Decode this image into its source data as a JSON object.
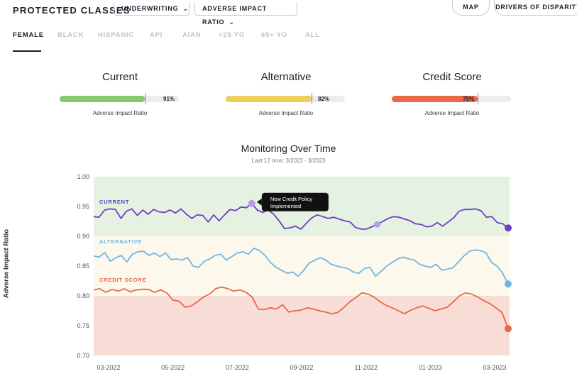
{
  "header": {
    "title": "PROTECTED CLASSES",
    "dropdowns": [
      {
        "label": "UNDERWRITING",
        "icon": "chevron-down-icon"
      },
      {
        "label": "ADVERSE IMPACT RATIO",
        "icon": "chevron-down-icon"
      }
    ],
    "buttons": [
      {
        "label": "MAP"
      },
      {
        "label": "DRIVERS OF DISPARITY"
      }
    ]
  },
  "tabs": [
    {
      "label": "FEMALE",
      "active": true
    },
    {
      "label": "BLACK"
    },
    {
      "label": "HISPANIC"
    },
    {
      "label": "API"
    },
    {
      "label": "AIAN"
    },
    {
      "label": "<25 YO"
    },
    {
      "label": "65+ YO"
    },
    {
      "label": "ALL"
    }
  ],
  "metrics": [
    {
      "title": "Current",
      "value": 91,
      "value_label": "91%",
      "subtitle": "Adverse Impact Ratio",
      "color": "#86c86b"
    },
    {
      "title": "Alternative",
      "value": 82,
      "value_label": "82%",
      "subtitle": "Adverse Impact Ratio",
      "color": "#ecd05a"
    },
    {
      "title": "Credit Score",
      "value": 75,
      "value_label": "75%",
      "subtitle": "Adverse Impact Ratio",
      "color": "#e8684a"
    }
  ],
  "chart": {
    "title": "Monitoring Over Time",
    "subtitle": "Last 12 mos: 3/2022 - 3/2023",
    "ylabel": "Adverse Impact Ratio",
    "annotation": "New Credit Policy Implemented"
  },
  "chart_data": {
    "type": "line",
    "x_labels": [
      "03-2022",
      "05-2022",
      "07-2022",
      "09-2022",
      "11-2022",
      "01-2023",
      "03-2023"
    ],
    "ylim": [
      0.7,
      1.0
    ],
    "y_ticks": [
      0.7,
      0.75,
      0.8,
      0.85,
      0.9,
      0.95,
      1.0
    ],
    "bands": [
      {
        "from": 0.9,
        "to": 1.0,
        "color": "#e5f2e2"
      },
      {
        "from": 0.8,
        "to": 0.9,
        "color": "#fdf8ec"
      },
      {
        "from": 0.7,
        "to": 0.8,
        "color": "#f8dcd6"
      }
    ],
    "annotation_point": {
      "x": "07-2022",
      "y": 0.955,
      "series": "CURRENT"
    },
    "series": [
      {
        "name": "CURRENT",
        "color": "#6a3fc6",
        "label_color": "#5b3fc0",
        "values": [
          0.933,
          0.932,
          0.944,
          0.946,
          0.945,
          0.93,
          0.942,
          0.946,
          0.935,
          0.944,
          0.937,
          0.945,
          0.941,
          0.94,
          0.944,
          0.939,
          0.946,
          0.937,
          0.93,
          0.936,
          0.935,
          0.924,
          0.936,
          0.926,
          0.936,
          0.945,
          0.943,
          0.949,
          0.948,
          0.955,
          0.944,
          0.94,
          0.944,
          0.937,
          0.926,
          0.913,
          0.914,
          0.917,
          0.912,
          0.922,
          0.931,
          0.936,
          0.933,
          0.93,
          0.932,
          0.929,
          0.926,
          0.924,
          0.915,
          0.912,
          0.912,
          0.916,
          0.92,
          0.925,
          0.93,
          0.933,
          0.932,
          0.929,
          0.926,
          0.921,
          0.92,
          0.916,
          0.917,
          0.923,
          0.917,
          0.924,
          0.931,
          0.942,
          0.945,
          0.945,
          0.946,
          0.943,
          0.932,
          0.933,
          0.923,
          0.921,
          0.914
        ]
      },
      {
        "name": "ALTERNATIVE",
        "color": "#6fb7e3",
        "label_color": "#6fb7e3",
        "values": [
          0.867,
          0.865,
          0.873,
          0.858,
          0.864,
          0.868,
          0.857,
          0.87,
          0.874,
          0.875,
          0.868,
          0.872,
          0.866,
          0.872,
          0.861,
          0.862,
          0.86,
          0.864,
          0.85,
          0.848,
          0.858,
          0.862,
          0.868,
          0.87,
          0.86,
          0.866,
          0.872,
          0.874,
          0.87,
          0.88,
          0.876,
          0.868,
          0.856,
          0.848,
          0.843,
          0.838,
          0.84,
          0.833,
          0.843,
          0.855,
          0.86,
          0.864,
          0.86,
          0.853,
          0.85,
          0.848,
          0.846,
          0.84,
          0.838,
          0.846,
          0.848,
          0.833,
          0.841,
          0.85,
          0.856,
          0.862,
          0.865,
          0.862,
          0.86,
          0.853,
          0.85,
          0.848,
          0.853,
          0.843,
          0.845,
          0.847,
          0.857,
          0.867,
          0.875,
          0.877,
          0.876,
          0.872,
          0.856,
          0.85,
          0.838,
          0.82
        ]
      },
      {
        "name": "CREDIT SCORE",
        "color": "#e8684a",
        "label_color": "#e8684a",
        "values": [
          0.81,
          0.812,
          0.806,
          0.811,
          0.808,
          0.812,
          0.807,
          0.81,
          0.811,
          0.811,
          0.806,
          0.81,
          0.805,
          0.793,
          0.791,
          0.781,
          0.783,
          0.79,
          0.798,
          0.803,
          0.812,
          0.815,
          0.812,
          0.808,
          0.81,
          0.806,
          0.798,
          0.778,
          0.777,
          0.78,
          0.778,
          0.785,
          0.773,
          0.775,
          0.776,
          0.78,
          0.778,
          0.775,
          0.773,
          0.77,
          0.772,
          0.78,
          0.79,
          0.797,
          0.805,
          0.803,
          0.798,
          0.79,
          0.784,
          0.78,
          0.775,
          0.77,
          0.776,
          0.78,
          0.783,
          0.779,
          0.775,
          0.778,
          0.781,
          0.79,
          0.8,
          0.805,
          0.803,
          0.798,
          0.792,
          0.787,
          0.78,
          0.772,
          0.745
        ]
      }
    ]
  }
}
